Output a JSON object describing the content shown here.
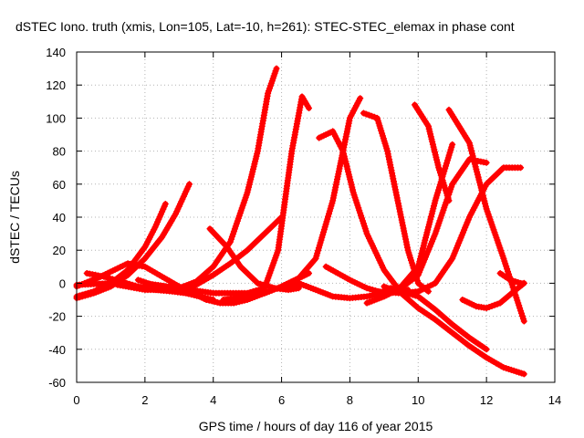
{
  "chart_data": {
    "type": "scatter",
    "title": "dSTEC Iono. truth (xmis, Lon=105, Lat=-10, h=261): STEC-STEC_elemax in phase cont",
    "xlabel": "GPS time / hours of day 116 of year 2015",
    "ylabel": "dSTEC  / TECUs",
    "xlim": [
      0,
      14
    ],
    "ylim": [
      -60,
      140
    ],
    "xticks": [
      0,
      2,
      4,
      6,
      8,
      10,
      12,
      14
    ],
    "yticks": [
      -60,
      -40,
      -20,
      0,
      20,
      40,
      60,
      80,
      100,
      120,
      140
    ],
    "x_tick_labels": [
      "0",
      "2",
      "4",
      "6",
      "8",
      "10",
      "12",
      "14"
    ],
    "y_tick_labels": [
      "-60",
      "-40",
      "-20",
      "0",
      "20",
      "40",
      "60",
      "80",
      "100",
      "120",
      "140"
    ],
    "grid": true,
    "marker": "plus",
    "color": "#ff0000",
    "series": [
      {
        "x": [
          0.0,
          0.5,
          1.0,
          1.5,
          2.0,
          2.3,
          2.6
        ],
        "y": [
          -8,
          -5,
          0,
          8,
          22,
          34,
          48
        ]
      },
      {
        "x": [
          0.0,
          0.5,
          1.0,
          1.5,
          2.0,
          2.5,
          2.9,
          3.3
        ],
        "y": [
          -9,
          -6,
          -2,
          5,
          15,
          28,
          42,
          60
        ]
      },
      {
        "x": [
          0.3,
          0.8,
          1.3,
          1.8,
          2.3,
          2.8,
          3.2,
          3.6,
          4.0
        ],
        "y": [
          6,
          4,
          1,
          -2,
          -4,
          -5,
          -6,
          -8,
          -10
        ]
      },
      {
        "x": [
          0.0,
          0.7,
          1.2,
          1.5,
          2.0,
          2.5,
          3.0,
          3.5,
          3.8
        ],
        "y": [
          -2,
          4,
          9,
          12,
          10,
          4,
          -2,
          -7,
          -10
        ]
      },
      {
        "x": [
          0.0,
          1.0,
          2.0,
          3.0,
          3.5,
          4.0,
          4.5,
          5.0,
          5.3,
          5.6,
          5.85
        ],
        "y": [
          -1,
          0,
          -3,
          -3,
          1,
          10,
          25,
          55,
          80,
          115,
          130
        ]
      },
      {
        "x": [
          1.2,
          2.0,
          3.0,
          3.5,
          4.0,
          4.5,
          5.0,
          5.5,
          6.0
        ],
        "y": [
          -1,
          -4,
          -4,
          -1,
          5,
          12,
          20,
          30,
          40
        ]
      },
      {
        "x": [
          1.8,
          2.5,
          3.0,
          3.5,
          3.8,
          4.2,
          4.6,
          5.0,
          5.5,
          6.0,
          6.4,
          6.8
        ],
        "y": [
          2,
          -3,
          -5,
          -7,
          -10,
          -12,
          -12,
          -10,
          -6,
          -2,
          2,
          6
        ]
      },
      {
        "x": [
          2.0,
          3.0,
          4.0,
          5.0,
          5.5,
          5.9,
          6.3,
          6.6,
          6.8
        ],
        "y": [
          0,
          -3,
          -6,
          -6,
          -3,
          20,
          80,
          113,
          106
        ]
      },
      {
        "x": [
          3.9,
          4.4,
          4.8,
          5.3,
          5.8,
          6.2,
          6.5
        ],
        "y": [
          33,
          22,
          10,
          0,
          -3,
          -4,
          -3
        ]
      },
      {
        "x": [
          4.3,
          5.0,
          5.5,
          6.0,
          6.5,
          7.0,
          7.5,
          8.0,
          8.3
        ],
        "y": [
          -10,
          -8,
          -6,
          -2,
          3,
          15,
          50,
          100,
          112
        ]
      },
      {
        "x": [
          6.0,
          6.5,
          7.0,
          7.5,
          8.0,
          8.5,
          8.9,
          9.3,
          9.7
        ],
        "y": [
          -3,
          0,
          -4,
          -8,
          -9,
          -8,
          -6,
          -5,
          -4
        ]
      },
      {
        "x": [
          7.1,
          7.5,
          7.8,
          8.1,
          8.5,
          9.0,
          9.4
        ],
        "y": [
          88,
          92,
          80,
          55,
          30,
          8,
          -3
        ]
      },
      {
        "x": [
          8.4,
          8.8,
          9.1,
          9.4,
          9.7,
          10.0,
          10.3
        ],
        "y": [
          103,
          100,
          80,
          50,
          20,
          0,
          -5
        ]
      },
      {
        "x": [
          7.3,
          8.0,
          8.5,
          9.0,
          9.5,
          10.0,
          10.5,
          11.0
        ],
        "y": [
          10,
          2,
          -3,
          -6,
          -2,
          10,
          50,
          84
        ]
      },
      {
        "x": [
          8.5,
          9.0,
          9.5,
          10.0,
          10.5,
          11.0,
          11.5,
          12.0
        ],
        "y": [
          -12,
          -8,
          -3,
          5,
          30,
          60,
          75,
          73
        ]
      },
      {
        "x": [
          8.8,
          9.5,
          10.0,
          10.5,
          11.0,
          11.5,
          12.0,
          12.5,
          13.0
        ],
        "y": [
          -5,
          -6,
          -5,
          0,
          15,
          40,
          60,
          70,
          70
        ]
      },
      {
        "x": [
          9.9,
          10.3,
          10.6,
          10.9
        ],
        "y": [
          108,
          95,
          70,
          50
        ]
      },
      {
        "x": [
          10.9,
          11.5,
          12.0,
          12.5,
          13.1
        ],
        "y": [
          105,
          85,
          45,
          15,
          -23
        ]
      },
      {
        "x": [
          9.0,
          9.5,
          10.0,
          10.5,
          11.0,
          11.5,
          12.0,
          12.5,
          13.1
        ],
        "y": [
          -2,
          -6,
          -15,
          -22,
          -30,
          -38,
          -45,
          -51,
          -55
        ]
      },
      {
        "x": [
          9.2,
          10.0,
          10.5,
          11.0,
          11.5,
          12.0
        ],
        "y": [
          -3,
          -8,
          -16,
          -25,
          -33,
          -40
        ]
      },
      {
        "x": [
          11.3,
          11.7,
          12.0,
          12.4,
          12.8,
          13.1
        ],
        "y": [
          -10,
          -14,
          -15,
          -12,
          -5,
          0
        ]
      },
      {
        "x": [
          12.4,
          12.7,
          13.0,
          13.1
        ],
        "y": [
          6,
          2,
          0,
          0
        ]
      }
    ]
  }
}
